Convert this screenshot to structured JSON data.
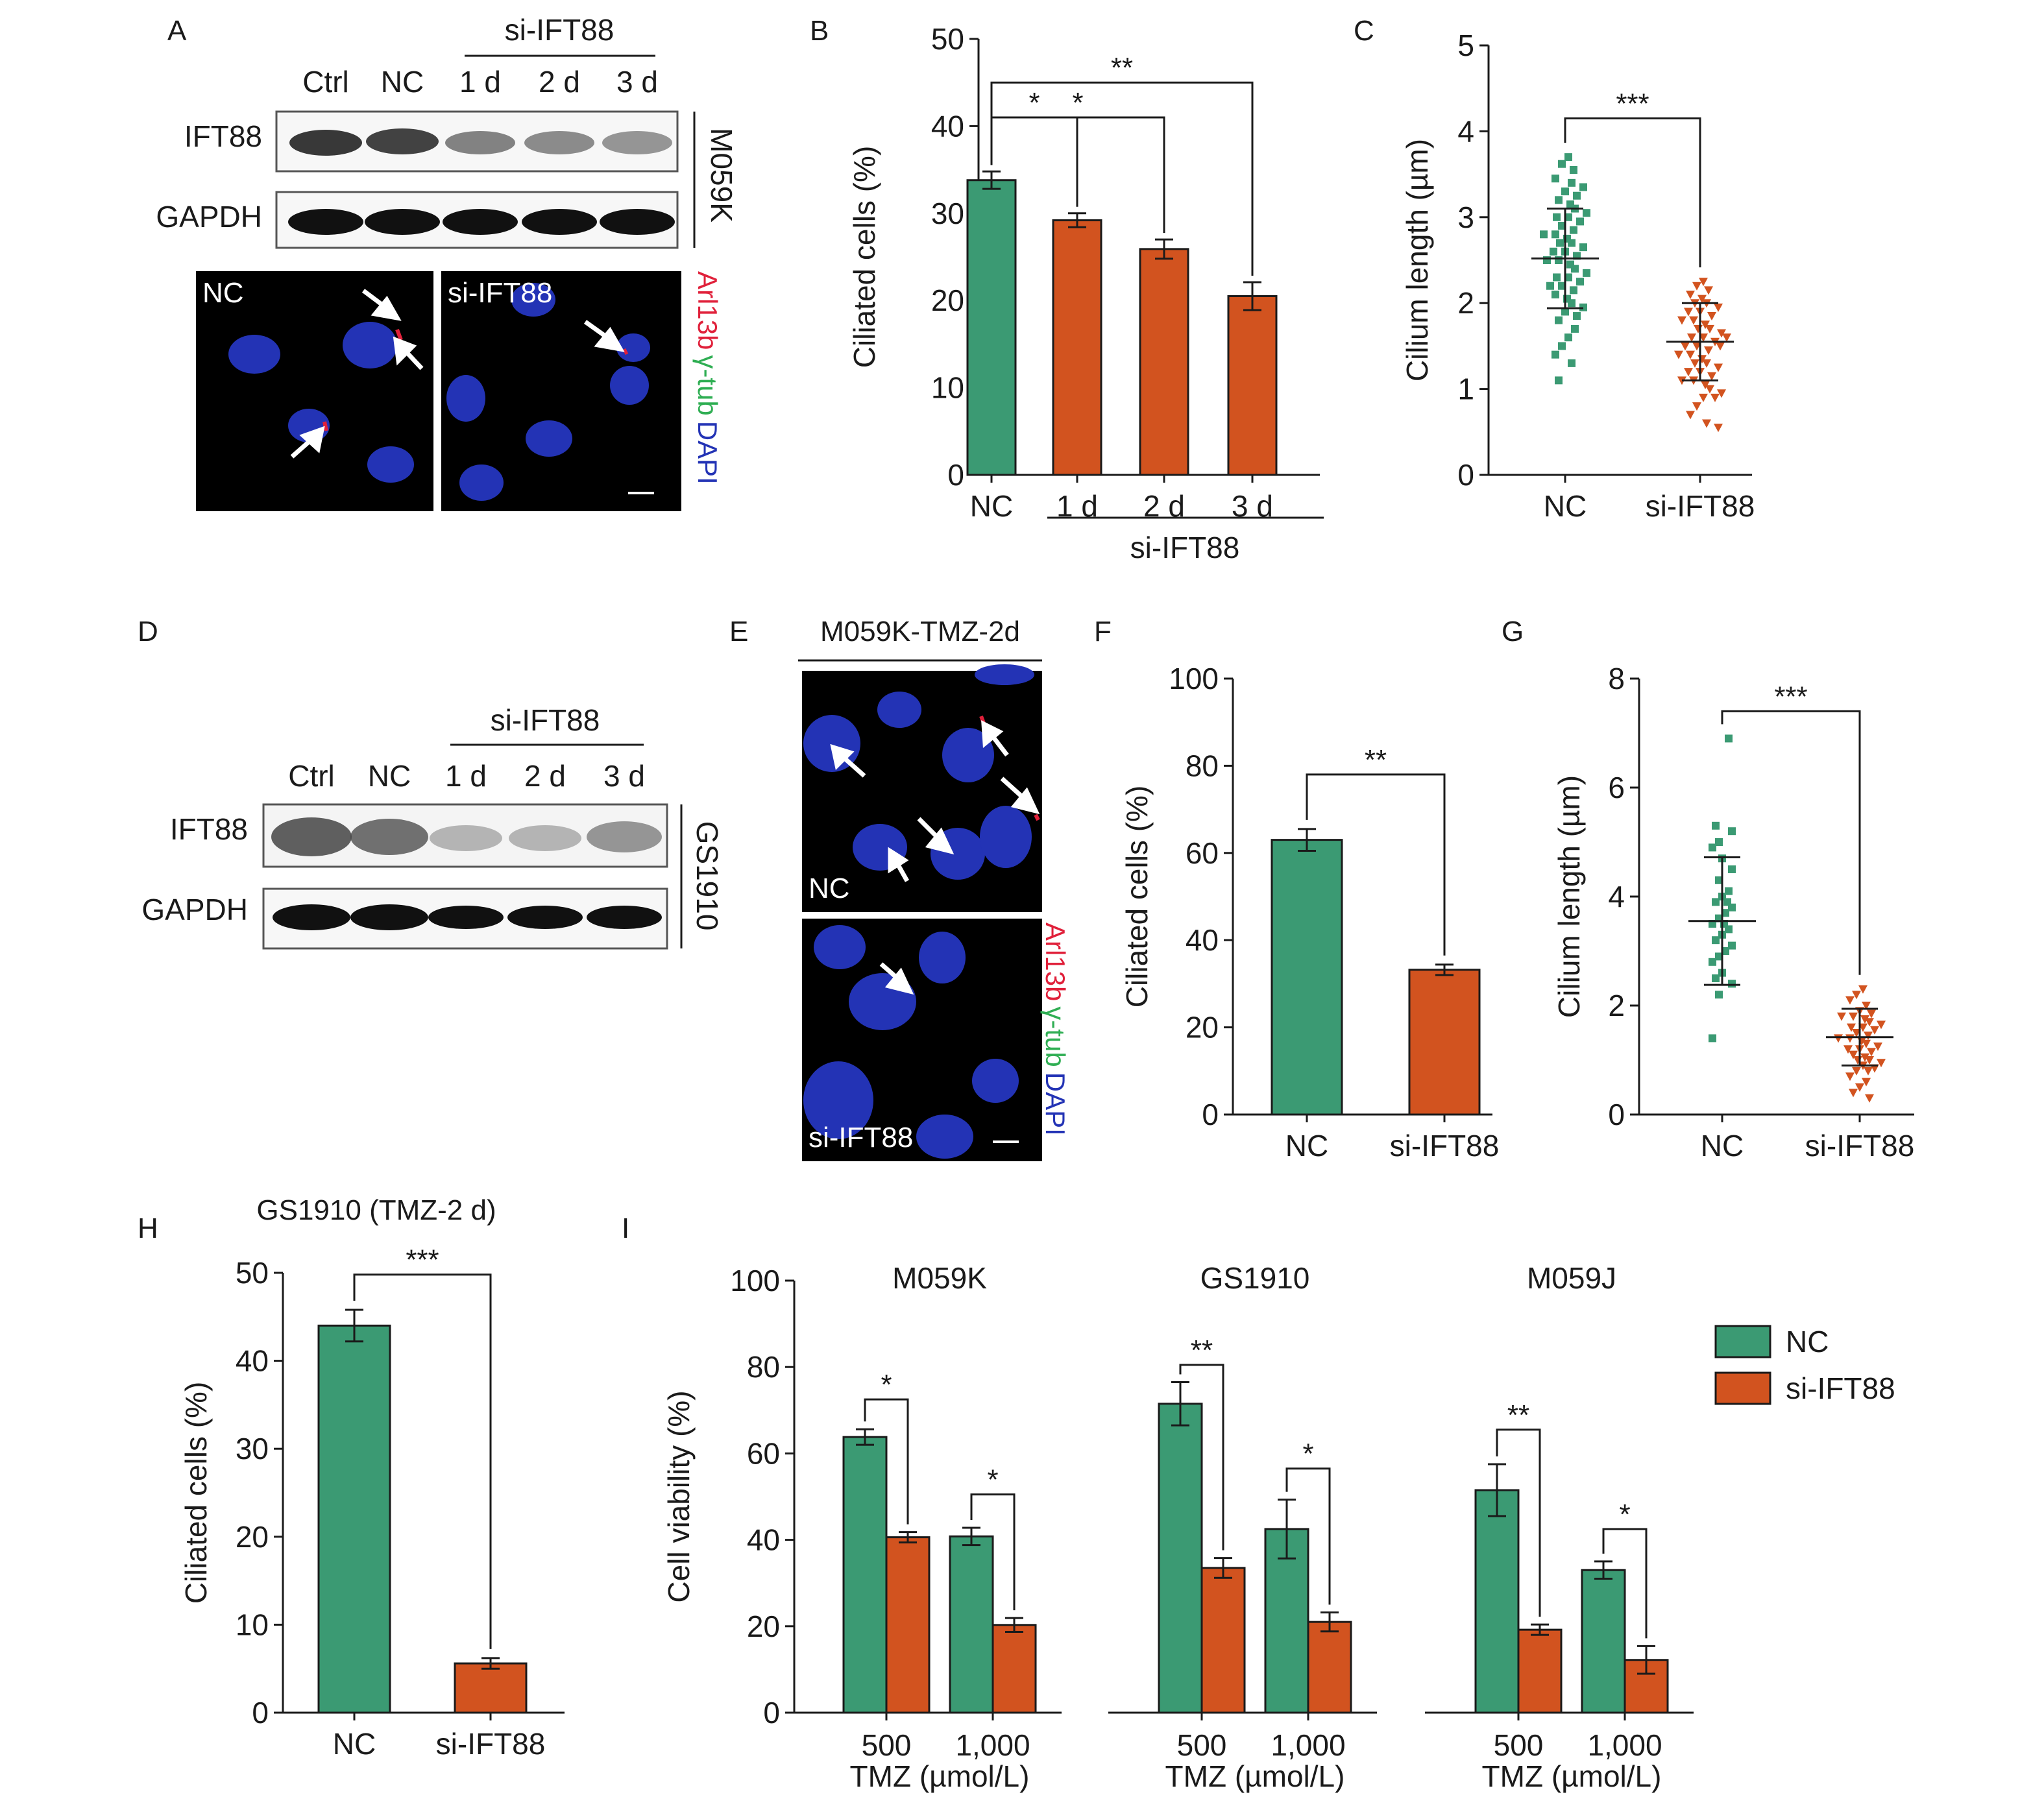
{
  "colors": {
    "nc": "#3b9a73",
    "si": "#d2531f",
    "axis": "#1a1a1a",
    "nucleus": "#2333b5",
    "red_marker": "#e0203a",
    "green_marker": "#2fae53"
  },
  "panels": {
    "A": {
      "letter": "A",
      "lanes": [
        "Ctrl",
        "NC",
        "1 d",
        "2 d",
        "3 d"
      ],
      "group_label": "si-IFT88",
      "rows": [
        "IFT88",
        "GAPDH"
      ],
      "cell_line": "M059K",
      "image_labels": [
        "NC",
        "si-IFT88"
      ],
      "stain": {
        "red": "Arl13b",
        "green": "γ-tub",
        "blue": "DAPI"
      }
    },
    "B": {
      "letter": "B"
    },
    "C": {
      "letter": "C"
    },
    "D": {
      "letter": "D",
      "lanes": [
        "Ctrl",
        "NC",
        "1 d",
        "2 d",
        "3 d"
      ],
      "group_label": "si-IFT88",
      "rows": [
        "IFT88",
        "GAPDH"
      ],
      "cell_line": "GS1910"
    },
    "E": {
      "letter": "E",
      "title": "M059K-TMZ-2d",
      "image_labels": [
        "NC",
        "si-IFT88"
      ],
      "stain": {
        "red": "Arl13b",
        "green": "γ-tub",
        "blue": "DAPI"
      }
    },
    "F": {
      "letter": "F"
    },
    "G": {
      "letter": "G"
    },
    "H": {
      "letter": "H",
      "title": "GS1910 (TMZ-2 d)"
    },
    "I": {
      "letter": "I"
    }
  },
  "chart_data": [
    {
      "panel": "B",
      "type": "bar",
      "ylabel": "Ciliated cells (%)",
      "ylim": [
        0,
        50
      ],
      "yticks": [
        0,
        10,
        20,
        30,
        40,
        50
      ],
      "categories": [
        "NC",
        "1 d",
        "2 d",
        "3 d"
      ],
      "group_label": "si-IFT88",
      "values": [
        33.8,
        29.2,
        25.9,
        20.5
      ],
      "errors": [
        1.0,
        0.8,
        1.1,
        1.6
      ],
      "bar_colors": [
        "nc",
        "si",
        "si",
        "si"
      ],
      "significance": [
        {
          "from": 0,
          "to": 1,
          "label": "*"
        },
        {
          "from": 0,
          "to": 2,
          "label": "*"
        },
        {
          "from": 0,
          "to": 3,
          "label": "**"
        }
      ]
    },
    {
      "panel": "C",
      "type": "scatter",
      "ylabel": "Cilium length (µm)",
      "ylim": [
        0,
        5
      ],
      "yticks": [
        0,
        1,
        2,
        3,
        4,
        5
      ],
      "categories": [
        "NC",
        "si-IFT88"
      ],
      "series": [
        {
          "values": [
            3.7,
            3.62,
            3.55,
            3.45,
            3.4,
            3.35,
            3.3,
            3.25,
            3.2,
            3.15,
            3.1,
            3.05,
            3.0,
            2.95,
            2.9,
            2.85,
            2.8,
            2.75,
            2.7,
            2.65,
            2.6,
            2.55,
            2.5,
            2.45,
            2.4,
            2.35,
            2.3,
            2.25,
            2.2,
            2.15,
            2.1,
            2.05,
            2.0,
            1.95,
            1.9,
            1.85,
            1.8,
            1.7,
            1.6,
            1.5,
            1.4,
            1.3,
            1.1,
            2.5,
            2.6,
            2.8,
            3.0,
            2.7,
            2.3,
            2.2
          ],
          "mean": 2.52,
          "sd": 0.58
        },
        {
          "values": [
            2.25,
            2.2,
            2.15,
            2.1,
            2.05,
            2.0,
            1.95,
            1.9,
            1.85,
            1.8,
            1.75,
            1.7,
            1.65,
            1.6,
            1.55,
            1.5,
            1.45,
            1.4,
            1.35,
            1.3,
            1.25,
            1.2,
            1.15,
            1.1,
            1.05,
            1.0,
            0.95,
            0.9,
            0.8,
            0.7,
            0.6,
            0.55,
            1.6,
            1.5,
            1.4,
            1.7,
            1.8,
            1.3,
            1.2,
            2.0,
            1.9,
            1.1,
            0.9,
            1.5,
            1.6
          ],
          "mean": 1.55,
          "sd": 0.45
        }
      ],
      "significance": [
        {
          "from": 0,
          "to": 1,
          "label": "***"
        }
      ]
    },
    {
      "panel": "F",
      "type": "bar",
      "ylabel": "Ciliated cells (%)",
      "ylim": [
        0,
        100
      ],
      "yticks": [
        0,
        20,
        40,
        60,
        80,
        100
      ],
      "categories": [
        "NC",
        "si-IFT88"
      ],
      "values": [
        63,
        33.2
      ],
      "errors": [
        2.5,
        1.2
      ],
      "bar_colors": [
        "nc",
        "si"
      ],
      "significance": [
        {
          "from": 0,
          "to": 1,
          "label": "**"
        }
      ]
    },
    {
      "panel": "G",
      "type": "scatter",
      "ylabel": "Cilium length (µm)",
      "ylim": [
        0,
        8
      ],
      "yticks": [
        0,
        2,
        4,
        6,
        8
      ],
      "categories": [
        "NC",
        "si-IFT88"
      ],
      "series": [
        {
          "values": [
            6.9,
            5.3,
            5.2,
            5.0,
            4.9,
            4.7,
            4.5,
            4.3,
            4.1,
            4.0,
            3.9,
            3.8,
            3.7,
            3.6,
            3.5,
            3.4,
            3.3,
            3.2,
            3.1,
            3.0,
            2.9,
            2.8,
            2.6,
            2.5,
            2.4,
            2.2,
            1.4,
            3.5,
            3.9
          ],
          "mean": 3.55,
          "sd": 1.17
        },
        {
          "values": [
            2.3,
            2.2,
            2.1,
            2.0,
            1.9,
            1.85,
            1.8,
            1.75,
            1.7,
            1.65,
            1.6,
            1.55,
            1.5,
            1.45,
            1.4,
            1.35,
            1.3,
            1.25,
            1.2,
            1.15,
            1.1,
            1.05,
            1.0,
            0.95,
            0.9,
            0.85,
            0.8,
            0.7,
            0.6,
            0.5,
            0.4,
            0.3,
            1.6,
            1.4,
            1.2,
            1.8,
            1.0,
            0.8
          ],
          "mean": 1.42,
          "sd": 0.52
        }
      ],
      "significance": [
        {
          "from": 0,
          "to": 1,
          "label": "***"
        }
      ]
    },
    {
      "panel": "H",
      "type": "bar",
      "ylabel": "Ciliated cells (%)",
      "ylim": [
        0,
        50
      ],
      "yticks": [
        0,
        10,
        20,
        30,
        40,
        50
      ],
      "categories": [
        "NC",
        "si-IFT88"
      ],
      "values": [
        44,
        5.6
      ],
      "errors": [
        1.8,
        0.6
      ],
      "bar_colors": [
        "nc",
        "si"
      ],
      "significance": [
        {
          "from": 0,
          "to": 1,
          "label": "***"
        }
      ]
    },
    {
      "panel": "I",
      "type": "bar",
      "ylabel": "Cell viability (%)",
      "ylim": [
        0,
        100
      ],
      "yticks": [
        0,
        20,
        40,
        60,
        80,
        100
      ],
      "xlabel": "TMZ (µmol/L)",
      "legend": {
        "position": "right",
        "entries": [
          "NC",
          "si-IFT88"
        ]
      },
      "groups": [
        {
          "title": "M059K",
          "categories": [
            "500",
            "1,000"
          ],
          "nc": [
            63.8,
            40.8
          ],
          "nc_err": [
            1.8,
            2.0
          ],
          "si": [
            40.6,
            20.3
          ],
          "si_err": [
            1.2,
            1.6
          ],
          "significance": [
            "*",
            "*"
          ]
        },
        {
          "title": "GS1910",
          "categories": [
            "500",
            "1,000"
          ],
          "nc": [
            71.5,
            42.5
          ],
          "nc_err": [
            5.0,
            6.8
          ],
          "si": [
            33.5,
            21.0
          ],
          "si_err": [
            2.3,
            2.2
          ],
          "significance": [
            "**",
            "*"
          ]
        },
        {
          "title": "M059J",
          "categories": [
            "500",
            "1,000"
          ],
          "nc": [
            51.5,
            33.0
          ],
          "nc_err": [
            6.0,
            2.0
          ],
          "si": [
            19.2,
            12.2
          ],
          "si_err": [
            1.2,
            3.2
          ],
          "significance": [
            "**",
            "*"
          ]
        }
      ]
    }
  ]
}
